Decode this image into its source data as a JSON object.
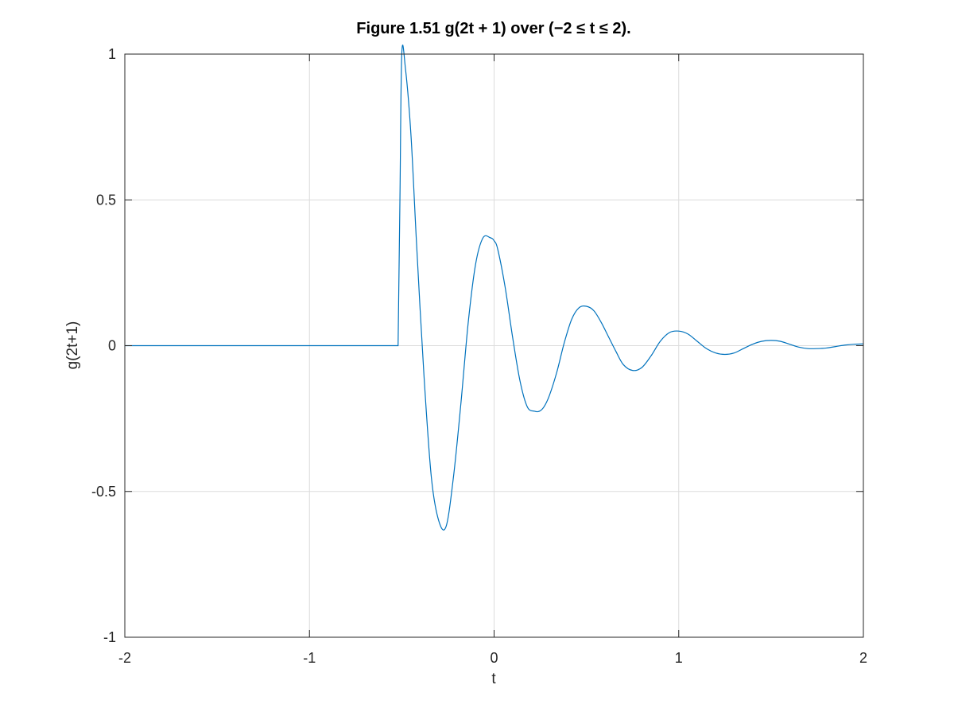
{
  "chart_data": {
    "type": "line",
    "title": "Figure 1.51 g(2t + 1) over (−2 ≤ t ≤ 2).",
    "xlabel": "t",
    "ylabel": "g(2t+1)",
    "xlim": [
      -2,
      2
    ],
    "ylim": [
      -1,
      1
    ],
    "grid": true,
    "x_ticks": [
      -2,
      -1,
      0,
      1,
      2
    ],
    "x_tick_labels": [
      "-2",
      "-1",
      "0",
      "1",
      "2"
    ],
    "y_ticks": [
      -1,
      -0.5,
      0,
      0.5,
      1
    ],
    "y_tick_labels": [
      "-1",
      "-0.5",
      "0",
      "0.5",
      "1"
    ],
    "series": [
      {
        "color": "#0072bd",
        "x": [
          -2,
          -1.5,
          -1,
          -0.52,
          -0.51,
          -0.5,
          -0.48,
          -0.45,
          -0.42,
          -0.38,
          -0.34,
          -0.3,
          -0.26,
          -0.22,
          -0.18,
          -0.14,
          -0.1,
          -0.06,
          -0.02,
          0,
          0.02,
          0.06,
          0.1,
          0.14,
          0.18,
          0.22,
          0.245,
          0.27,
          0.3,
          0.34,
          0.38,
          0.42,
          0.46,
          0.5,
          0.54,
          0.58,
          0.62,
          0.66,
          0.7,
          0.75,
          0.8,
          0.85,
          0.9,
          0.95,
          1.0,
          1.05,
          1.1,
          1.15,
          1.2,
          1.25,
          1.3,
          1.35,
          1.4,
          1.45,
          1.5,
          1.55,
          1.6,
          1.65,
          1.7,
          1.75,
          1.8,
          1.85,
          1.9,
          1.95,
          2.0
        ],
        "y": [
          0,
          0,
          0,
          0,
          0.5,
          1.0,
          0.95,
          0.72,
          0.35,
          -0.1,
          -0.45,
          -0.6,
          -0.62,
          -0.45,
          -0.2,
          0.08,
          0.28,
          0.37,
          0.37,
          0.36,
          0.33,
          0.2,
          0.03,
          -0.12,
          -0.21,
          -0.225,
          -0.225,
          -0.21,
          -0.17,
          -0.09,
          0.01,
          0.09,
          0.13,
          0.135,
          0.12,
          0.08,
          0.03,
          -0.02,
          -0.065,
          -0.085,
          -0.075,
          -0.035,
          0.015,
          0.045,
          0.05,
          0.04,
          0.015,
          -0.01,
          -0.025,
          -0.03,
          -0.025,
          -0.01,
          0.005,
          0.015,
          0.018,
          0.015,
          0.005,
          -0.005,
          -0.01,
          -0.01,
          -0.008,
          -0.003,
          0.002,
          0.005,
          0.006
        ]
      }
    ]
  }
}
